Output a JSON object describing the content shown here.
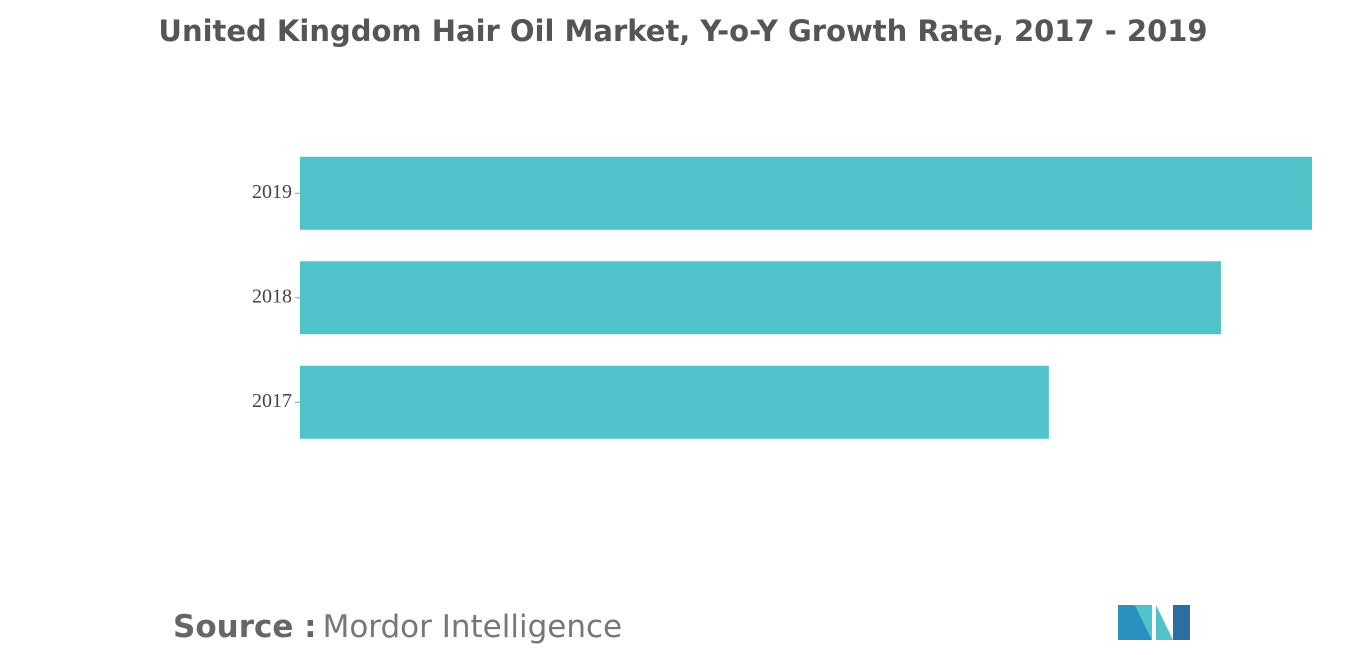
{
  "chart_data": {
    "type": "bar",
    "orientation": "horizontal",
    "title": "United Kingdom Hair Oil Market, Y-o-Y Growth Rate, 2017 - 2019",
    "categories": [
      "2019",
      "2018",
      "2017"
    ],
    "values": [
      1.0,
      0.91,
      0.74
    ],
    "color": "#4fc3c9",
    "xlim": [
      0,
      1
    ],
    "source_label": "Source :",
    "source_name": "Mordor Intelligence"
  }
}
